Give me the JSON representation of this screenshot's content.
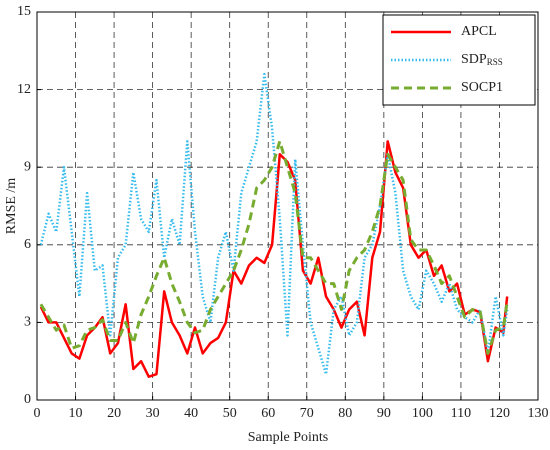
{
  "chart_data": {
    "type": "line",
    "xlabel": "Sample Points",
    "ylabel": "RMSE /m",
    "xlim": [
      0,
      130
    ],
    "ylim": [
      0,
      15
    ],
    "xticks": [
      0,
      10,
      20,
      30,
      40,
      50,
      60,
      70,
      80,
      90,
      100,
      110,
      120,
      130
    ],
    "yticks": [
      0,
      3,
      6,
      9,
      12,
      15
    ],
    "grid": true,
    "legend": "upper right",
    "x": [
      1,
      3,
      5,
      7,
      9,
      11,
      13,
      15,
      17,
      19,
      21,
      23,
      25,
      27,
      29,
      31,
      33,
      35,
      37,
      39,
      41,
      43,
      45,
      47,
      49,
      51,
      53,
      55,
      57,
      59,
      61,
      63,
      65,
      67,
      69,
      71,
      73,
      75,
      77,
      79,
      81,
      83,
      85,
      87,
      89,
      91,
      93,
      95,
      97,
      99,
      101,
      103,
      105,
      107,
      109,
      111,
      113,
      115,
      117,
      119,
      121,
      122
    ],
    "series": [
      {
        "name": "APCL",
        "color": "#ff0000",
        "style": "solid",
        "values": [
          3.6,
          3.0,
          3.0,
          2.4,
          1.8,
          1.6,
          2.5,
          2.8,
          3.2,
          1.8,
          2.2,
          3.7,
          1.2,
          1.5,
          0.9,
          1.0,
          4.2,
          3.0,
          2.5,
          1.8,
          2.8,
          1.8,
          2.2,
          2.4,
          3.0,
          5.0,
          4.5,
          5.2,
          5.5,
          5.3,
          6.0,
          9.5,
          9.2,
          8.5,
          5.0,
          4.5,
          5.5,
          4.0,
          3.5,
          2.8,
          3.5,
          3.8,
          2.5,
          5.5,
          6.5,
          10.0,
          8.8,
          8.2,
          6.0,
          5.5,
          5.8,
          4.8,
          5.2,
          4.2,
          4.5,
          3.3,
          3.5,
          3.4,
          1.5,
          2.8,
          2.6,
          4.0
        ]
      },
      {
        "name": "SDP",
        "name_subscript": "RSS",
        "color": "#33bbee",
        "style": "dotted",
        "values": [
          6.0,
          7.2,
          6.5,
          9.0,
          6.5,
          4.0,
          8.0,
          5.0,
          5.2,
          2.5,
          5.5,
          6.0,
          8.8,
          7.0,
          6.5,
          8.5,
          5.5,
          7.0,
          6.0,
          10.0,
          6.5,
          4.0,
          3.0,
          5.5,
          6.5,
          5.0,
          8.0,
          9.0,
          10.0,
          12.6,
          10.5,
          7.0,
          2.5,
          9.3,
          6.0,
          3.0,
          2.0,
          1.0,
          3.5,
          4.0,
          2.5,
          3.0,
          5.5,
          6.0,
          7.5,
          9.5,
          8.0,
          5.0,
          4.0,
          3.5,
          5.0,
          4.5,
          3.8,
          4.5,
          3.5,
          3.2,
          3.0,
          3.5,
          1.8,
          4.0,
          2.5,
          3.5
        ]
      },
      {
        "name": "SOCP1",
        "color": "#77ac30",
        "style": "dashed",
        "values": [
          3.7,
          3.2,
          2.7,
          2.9,
          2.0,
          2.1,
          2.7,
          2.8,
          3.1,
          2.3,
          2.3,
          3.0,
          2.2,
          3.3,
          4.0,
          4.8,
          5.5,
          4.5,
          3.8,
          3.0,
          2.6,
          2.7,
          3.5,
          4.0,
          4.5,
          5.0,
          5.8,
          6.8,
          8.2,
          8.5,
          9.0,
          10.0,
          9.0,
          8.0,
          5.5,
          5.5,
          5.0,
          4.5,
          4.5,
          3.5,
          5.0,
          5.5,
          5.8,
          6.5,
          7.5,
          9.5,
          9.0,
          8.5,
          6.2,
          5.8,
          5.8,
          5.2,
          4.5,
          4.8,
          4.0,
          3.2,
          3.5,
          3.4,
          1.8,
          2.7,
          2.8,
          3.8
        ]
      }
    ]
  }
}
